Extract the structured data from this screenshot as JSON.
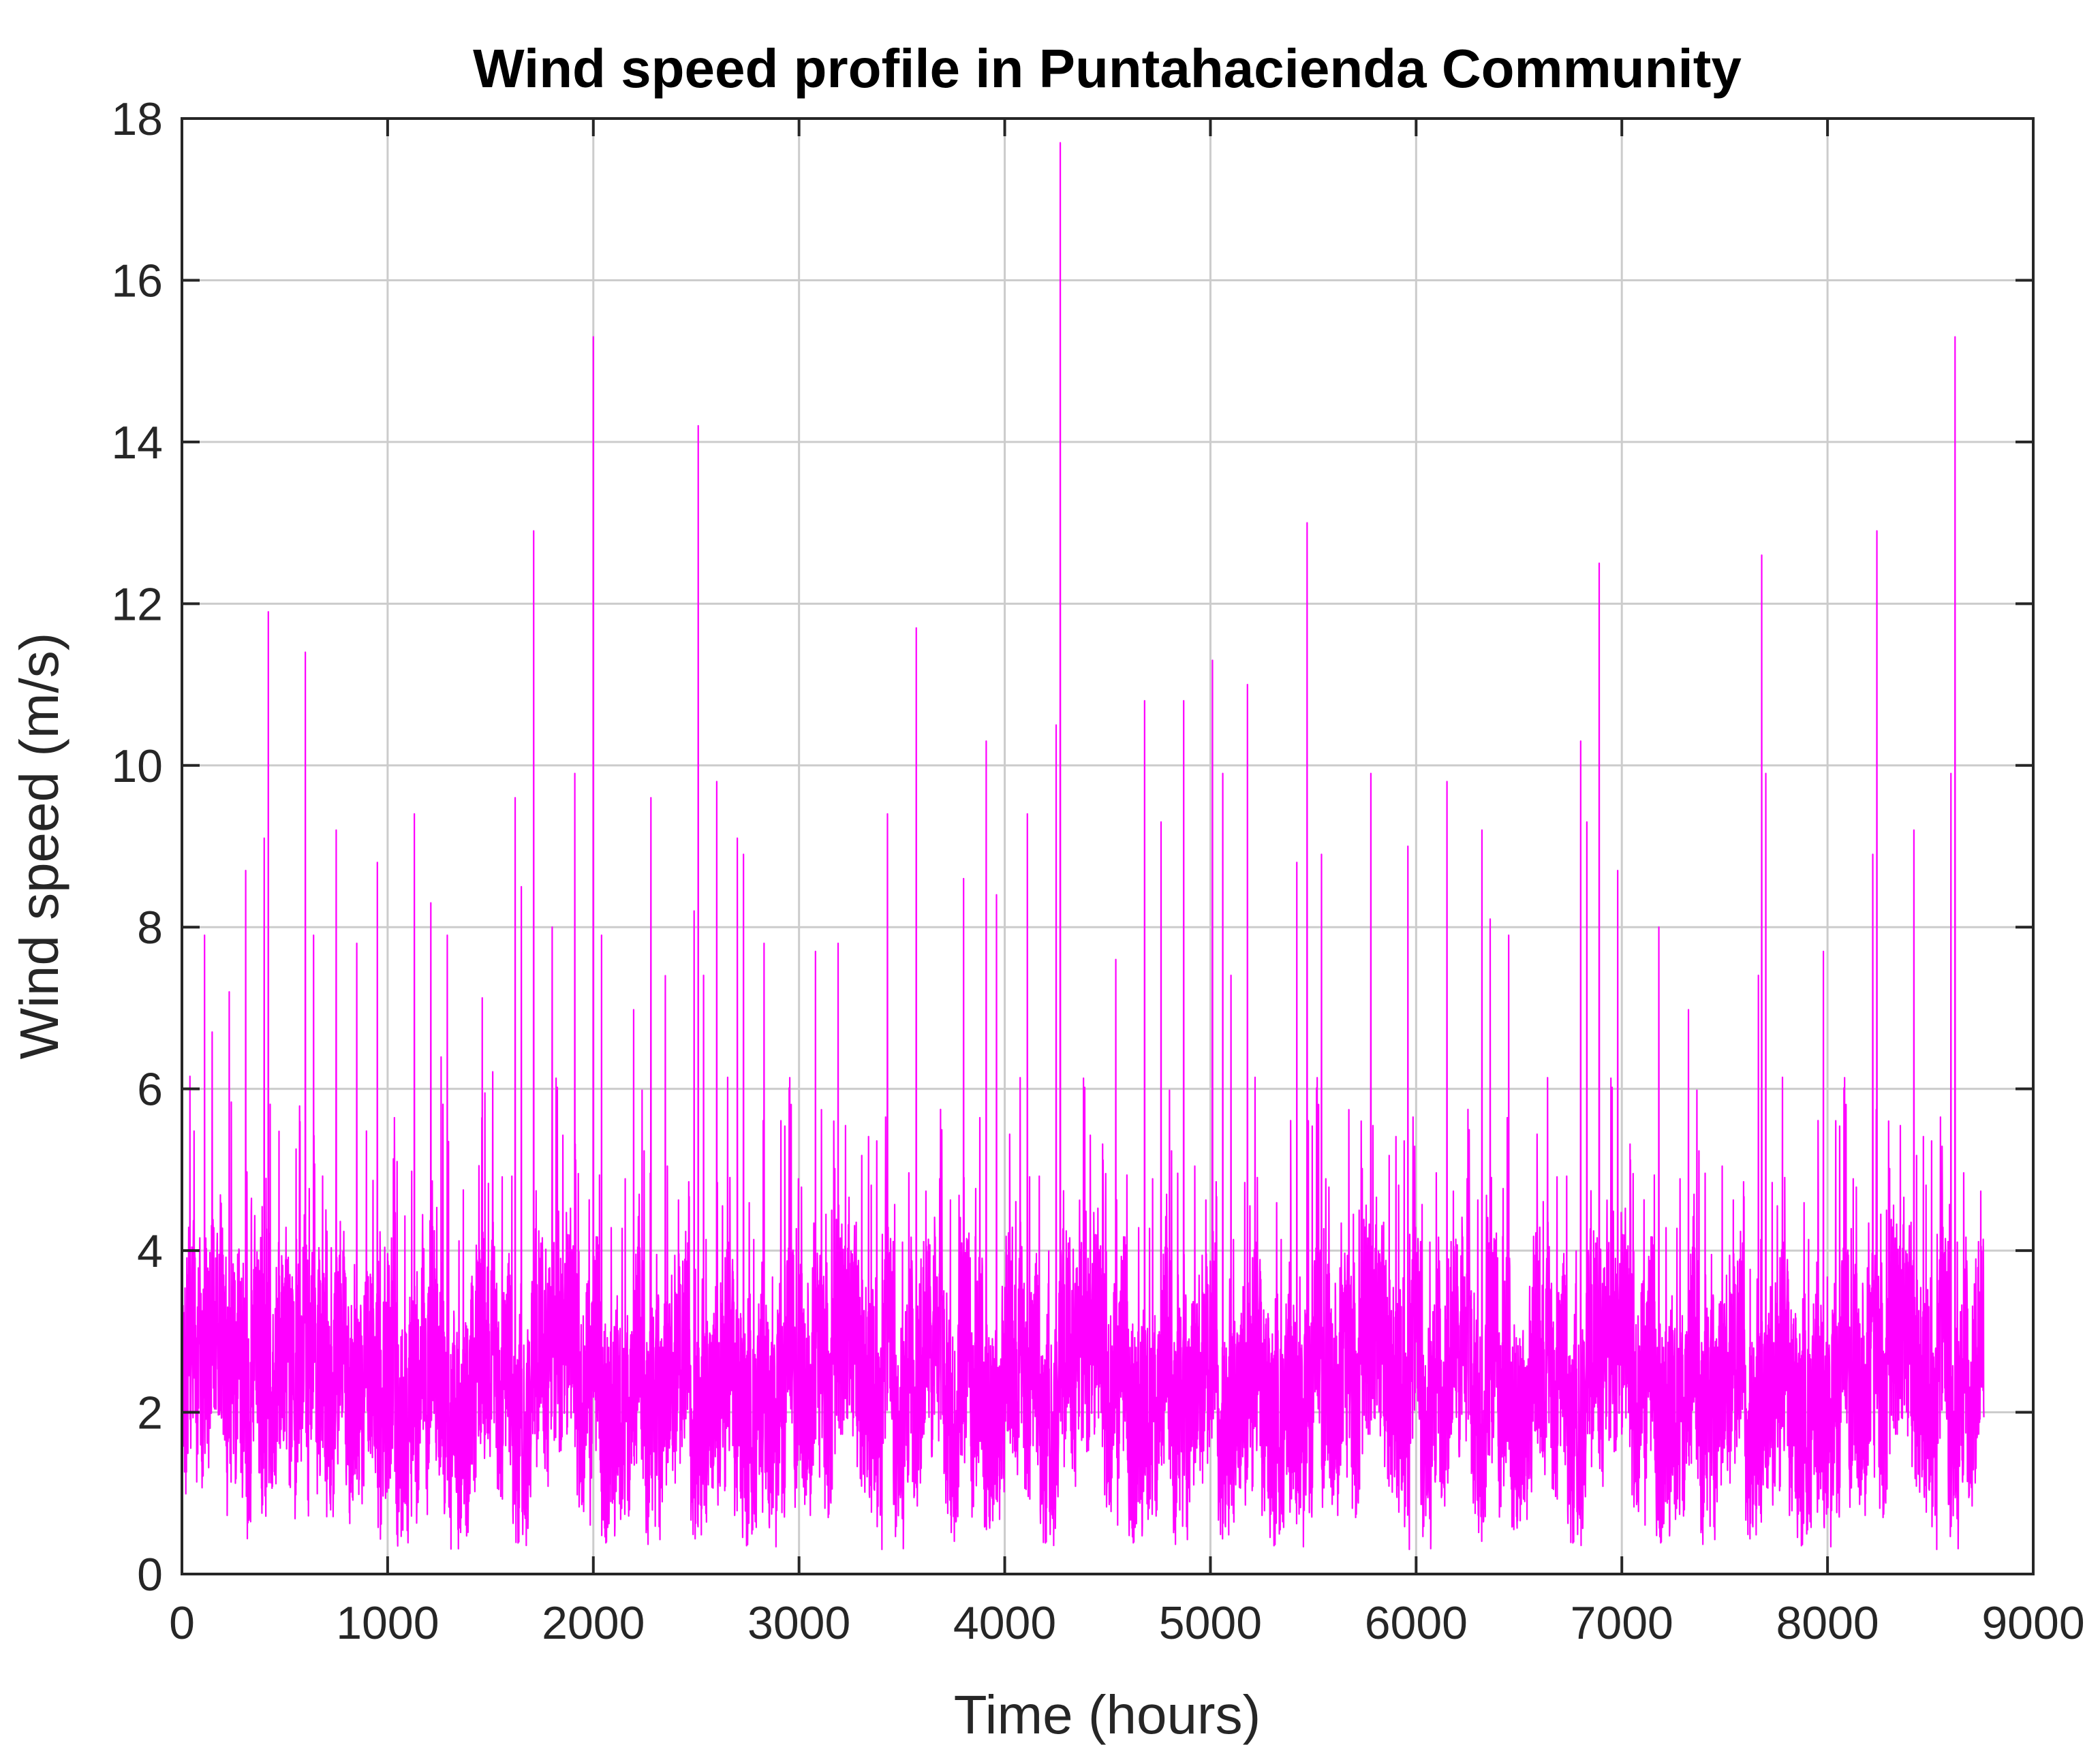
{
  "chart_data": {
    "type": "line",
    "title": "Wind speed profile in Puntahacienda Community",
    "xlabel": "Time (hours)",
    "ylabel": "Wind speed (m/s)",
    "xlim": [
      0,
      9000
    ],
    "ylim": [
      0,
      18
    ],
    "xticks": [
      "0",
      "1000",
      "2000",
      "3000",
      "4000",
      "5000",
      "6000",
      "7000",
      "8000",
      "9000"
    ],
    "yticks": [
      "0",
      "2",
      "4",
      "6",
      "8",
      "10",
      "12",
      "14",
      "16",
      "18"
    ],
    "grid": true,
    "legend": "none",
    "series_color": "#ff00ff",
    "series": [
      {
        "sampling": "hourly",
        "n_points": 8760,
        "x_range": [
          1,
          8760
        ],
        "typical_band": [
          1,
          4
        ],
        "min": 0.3,
        "max": 17.7,
        "peaks": [
          {
            "x": 110,
            "y": 7.9
          },
          {
            "x": 230,
            "y": 7.2
          },
          {
            "x": 310,
            "y": 8.7
          },
          {
            "x": 400,
            "y": 9.1
          },
          {
            "x": 420,
            "y": 11.9
          },
          {
            "x": 600,
            "y": 11.4
          },
          {
            "x": 640,
            "y": 7.9
          },
          {
            "x": 750,
            "y": 9.2
          },
          {
            "x": 850,
            "y": 7.8
          },
          {
            "x": 950,
            "y": 8.8
          },
          {
            "x": 1130,
            "y": 9.4
          },
          {
            "x": 1210,
            "y": 8.3
          },
          {
            "x": 1290,
            "y": 7.9
          },
          {
            "x": 1620,
            "y": 9.6
          },
          {
            "x": 1650,
            "y": 8.5
          },
          {
            "x": 1710,
            "y": 12.9
          },
          {
            "x": 1800,
            "y": 8.0
          },
          {
            "x": 1910,
            "y": 9.9
          },
          {
            "x": 2000,
            "y": 15.3
          },
          {
            "x": 2040,
            "y": 7.9
          },
          {
            "x": 2280,
            "y": 9.6
          },
          {
            "x": 2350,
            "y": 7.4
          },
          {
            "x": 2490,
            "y": 8.2
          },
          {
            "x": 2510,
            "y": 14.2
          },
          {
            "x": 2600,
            "y": 9.8
          },
          {
            "x": 2700,
            "y": 9.1
          },
          {
            "x": 2730,
            "y": 8.9
          },
          {
            "x": 2830,
            "y": 7.8
          },
          {
            "x": 3080,
            "y": 7.7
          },
          {
            "x": 3190,
            "y": 7.8
          },
          {
            "x": 3430,
            "y": 9.4
          },
          {
            "x": 3570,
            "y": 11.7
          },
          {
            "x": 3800,
            "y": 8.6
          },
          {
            "x": 3910,
            "y": 10.3
          },
          {
            "x": 3960,
            "y": 8.4
          },
          {
            "x": 4110,
            "y": 9.4
          },
          {
            "x": 4250,
            "y": 10.5
          },
          {
            "x": 4270,
            "y": 17.7
          },
          {
            "x": 4540,
            "y": 7.6
          },
          {
            "x": 4680,
            "y": 10.8
          },
          {
            "x": 4760,
            "y": 9.3
          },
          {
            "x": 4870,
            "y": 10.8
          },
          {
            "x": 5010,
            "y": 11.3
          },
          {
            "x": 5060,
            "y": 9.9
          },
          {
            "x": 5180,
            "y": 11.0
          },
          {
            "x": 5420,
            "y": 8.8
          },
          {
            "x": 5470,
            "y": 13.0
          },
          {
            "x": 5540,
            "y": 8.9
          },
          {
            "x": 5780,
            "y": 9.9
          },
          {
            "x": 5960,
            "y": 9.0
          },
          {
            "x": 6150,
            "y": 9.8
          },
          {
            "x": 6320,
            "y": 9.2
          },
          {
            "x": 6360,
            "y": 8.1
          },
          {
            "x": 6450,
            "y": 7.9
          },
          {
            "x": 6800,
            "y": 10.3
          },
          {
            "x": 6830,
            "y": 9.3
          },
          {
            "x": 6890,
            "y": 12.5
          },
          {
            "x": 6980,
            "y": 8.7
          },
          {
            "x": 7180,
            "y": 8.0
          },
          {
            "x": 7680,
            "y": 12.6
          },
          {
            "x": 7700,
            "y": 9.9
          },
          {
            "x": 7980,
            "y": 7.7
          },
          {
            "x": 8220,
            "y": 8.9
          },
          {
            "x": 8240,
            "y": 12.9
          },
          {
            "x": 8420,
            "y": 9.2
          },
          {
            "x": 8600,
            "y": 9.9
          },
          {
            "x": 8620,
            "y": 15.3
          }
        ]
      }
    ]
  }
}
